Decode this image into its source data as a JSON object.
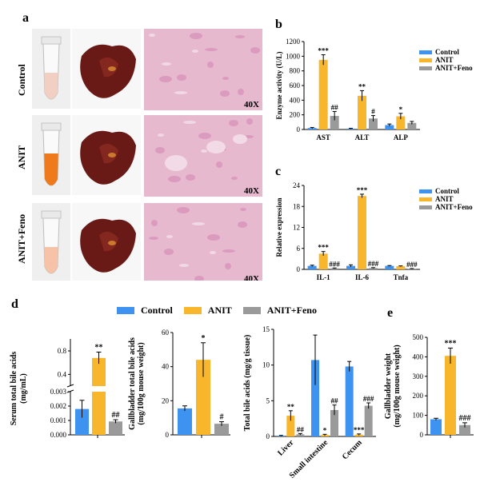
{
  "colors": {
    "control": "#3f93f0",
    "anit": "#f7b62c",
    "feno": "#9a9a9a",
    "liver": "#6a1a16",
    "histo_bg": "#e7b9cf",
    "histo_dark": "#d58fb6"
  },
  "panel_a": {
    "letter": "a",
    "rows": [
      "Control",
      "ANIT",
      "ANIT+Feno"
    ],
    "magnification": [
      "40X",
      "40X",
      "40X"
    ],
    "serum_colors": [
      "#f1cfc3",
      "#ee7a1c",
      "#f6c3a9"
    ]
  },
  "panel_d_legend": {
    "items": [
      {
        "label": "Control",
        "color": "#3f93f0"
      },
      {
        "label": "ANIT",
        "color": "#f7b62c"
      },
      {
        "label": "ANIT+Feno",
        "color": "#9a9a9a"
      }
    ]
  },
  "chart_data": [
    {
      "id": "b",
      "letter": "b",
      "type": "bar",
      "ylabel": "Enzyme activity (U/L)",
      "ylim": [
        0,
        1200
      ],
      "yticks": [
        "0",
        "200",
        "400",
        "600",
        "800",
        "1000",
        "1200"
      ],
      "categories": [
        "AST",
        "ALT",
        "ALP"
      ],
      "series": [
        {
          "name": "Control",
          "values": [
            20,
            12,
            60
          ],
          "err": [
            8,
            5,
            15
          ],
          "marks": [
            "",
            "",
            ""
          ]
        },
        {
          "name": "ANIT",
          "values": [
            950,
            460,
            180
          ],
          "err": [
            70,
            70,
            40
          ],
          "marks": [
            "***",
            "**",
            "*"
          ]
        },
        {
          "name": "ANIT+Feno",
          "values": [
            185,
            150,
            90
          ],
          "err": [
            60,
            40,
            20
          ],
          "marks": [
            "##",
            "#",
            ""
          ]
        }
      ]
    },
    {
      "id": "c",
      "letter": "c",
      "type": "bar",
      "ylabel": "Relative expression",
      "ylim": [
        0,
        24
      ],
      "yticks": [
        "0",
        "6",
        "12",
        "18",
        "24"
      ],
      "categories": [
        "IL-1",
        "IL-6",
        "Tnfa"
      ],
      "series": [
        {
          "name": "Control",
          "values": [
            1.0,
            1.0,
            1.0
          ],
          "err": [
            0.2,
            0.3,
            0.1
          ],
          "marks": [
            "",
            "",
            ""
          ]
        },
        {
          "name": "ANIT",
          "values": [
            4.5,
            21.0,
            0.9
          ],
          "err": [
            0.6,
            0.5,
            0.1
          ],
          "marks": [
            "***",
            "***",
            ""
          ]
        },
        {
          "name": "ANIT+Feno",
          "values": [
            0.3,
            0.4,
            0.2
          ],
          "err": [
            0.1,
            0.1,
            0.05
          ],
          "marks": [
            "###",
            "###",
            "###"
          ]
        }
      ]
    },
    {
      "id": "d1",
      "type": "bar",
      "ylabel": "Serum total bile acids (mg/mL)",
      "yticks_upper": [
        "0.4",
        "0.8"
      ],
      "yticks_lower": [
        "0.000",
        "0.001",
        "0.002",
        "0.003"
      ],
      "upper_range": [
        0.2,
        0.95
      ],
      "lower_range": [
        0,
        0.003
      ],
      "series": [
        {
          "name": "Control",
          "value": 0.0018,
          "err": 0.0006,
          "mark": ""
        },
        {
          "name": "ANIT",
          "value": 0.68,
          "err": 0.1,
          "mark": "**"
        },
        {
          "name": "ANIT+Feno",
          "value": 0.00093,
          "err": 0.00012,
          "mark": "##"
        }
      ]
    },
    {
      "id": "d2",
      "type": "bar",
      "ylabel": "Gallbladder total bile acids (mg/100g mouse weight)",
      "ylim": [
        0,
        60
      ],
      "yticks": [
        "0",
        "20",
        "40",
        "60"
      ],
      "series": [
        {
          "name": "Control",
          "value": 15.5,
          "err": 1.5,
          "mark": ""
        },
        {
          "name": "ANIT",
          "value": 44,
          "err": 10,
          "mark": "*"
        },
        {
          "name": "ANIT+Feno",
          "value": 6.5,
          "err": 1.2,
          "mark": "#"
        }
      ]
    },
    {
      "id": "d3",
      "type": "bar",
      "ylabel": "Total bile acids (mg/g tissue)",
      "ylim": [
        0,
        15
      ],
      "yticks": [
        "0",
        "5",
        "10",
        "15"
      ],
      "categories": [
        "Liver",
        "Small intestine",
        "Cecum"
      ],
      "series": [
        {
          "name": "Control",
          "values": [
            0.1,
            10.7,
            9.8
          ],
          "err": [
            0.05,
            3.5,
            0.7
          ],
          "marks": [
            "",
            "",
            ""
          ]
        },
        {
          "name": "ANIT",
          "values": [
            2.9,
            0.2,
            0.25
          ],
          "err": [
            0.7,
            0.1,
            0.1
          ],
          "marks": [
            "**",
            "*",
            "***"
          ]
        },
        {
          "name": "ANIT+Feno",
          "values": [
            0.3,
            3.7,
            4.3
          ],
          "err": [
            0.1,
            0.7,
            0.4
          ],
          "marks": [
            "##",
            "##",
            "###"
          ]
        }
      ]
    },
    {
      "id": "e",
      "letter": "e",
      "type": "bar",
      "ylabel": "Gallbladder weight (mg/100g mouse weight)",
      "ylim": [
        0,
        500
      ],
      "yticks": [
        "0",
        "100",
        "200",
        "300",
        "400",
        "500"
      ],
      "series": [
        {
          "name": "Control",
          "value": 80,
          "err": 5,
          "mark": ""
        },
        {
          "name": "ANIT",
          "value": 405,
          "err": 40,
          "mark": "***"
        },
        {
          "name": "ANIT+Feno",
          "value": 50,
          "err": 12,
          "mark": "###"
        }
      ]
    }
  ],
  "panel_d_letter": "d"
}
